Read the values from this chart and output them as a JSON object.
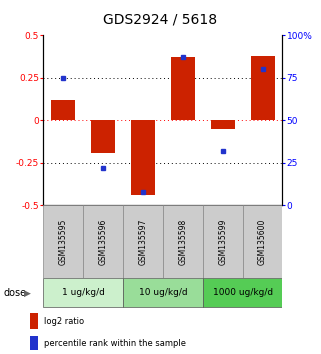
{
  "title": "GDS2924 / 5618",
  "samples": [
    "GSM135595",
    "GSM135596",
    "GSM135597",
    "GSM135598",
    "GSM135599",
    "GSM135600"
  ],
  "log2_ratios": [
    0.12,
    -0.19,
    -0.44,
    0.37,
    -0.05,
    0.38
  ],
  "percentile_ranks": [
    75,
    22,
    8,
    87,
    32,
    80
  ],
  "dose_groups": [
    {
      "label": "1 ug/kg/d",
      "samples": [
        0,
        1
      ],
      "color": "#ccf0cc"
    },
    {
      "label": "10 ug/kg/d",
      "samples": [
        2,
        3
      ],
      "color": "#99dd99"
    },
    {
      "label": "1000 ug/kg/d",
      "samples": [
        4,
        5
      ],
      "color": "#55cc55"
    }
  ],
  "bar_color": "#cc2200",
  "dot_color": "#2233cc",
  "ylim_left": [
    -0.5,
    0.5
  ],
  "ylim_right": [
    0,
    100
  ],
  "yticks_left": [
    -0.5,
    -0.25,
    0,
    0.25,
    0.5
  ],
  "yticks_right": [
    0,
    25,
    50,
    75,
    100
  ],
  "hlines": [
    -0.25,
    0,
    0.25
  ],
  "hline_colors": [
    "black",
    "red",
    "black"
  ],
  "hline_styles": [
    "dotted",
    "dotted",
    "dotted"
  ],
  "sample_bg_color": "#cccccc",
  "legend_items": [
    {
      "color": "#cc2200",
      "label": "log2 ratio"
    },
    {
      "color": "#2233cc",
      "label": "percentile rank within the sample"
    }
  ],
  "title_fontsize": 10,
  "tick_fontsize": 6.5,
  "sample_fontsize": 5.5,
  "dose_fontsize": 6.5,
  "legend_fontsize": 6
}
